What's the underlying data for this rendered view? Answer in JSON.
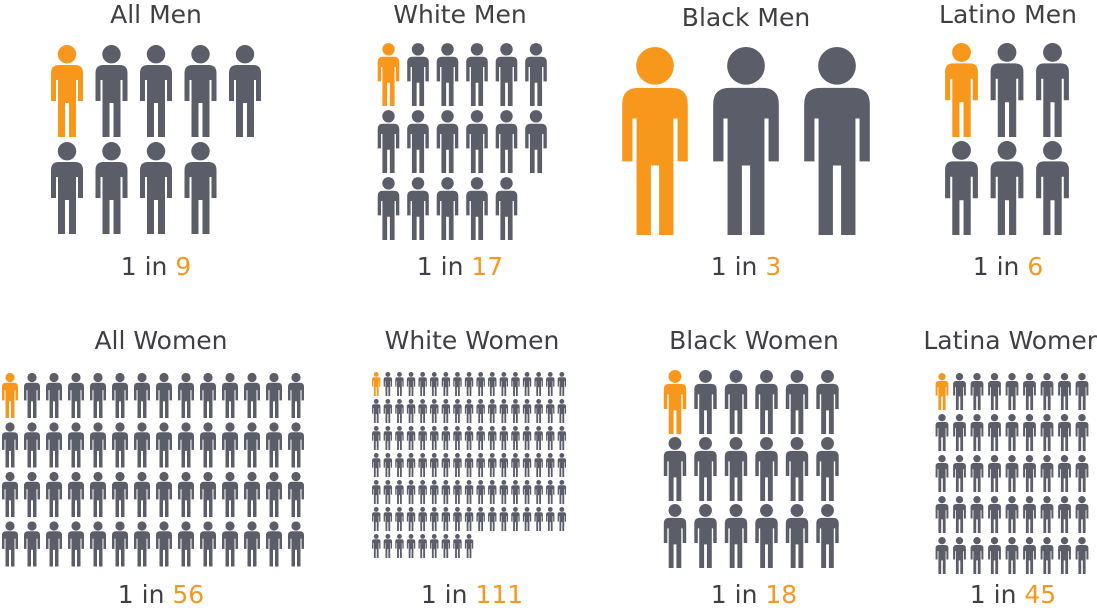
{
  "chart_data": {
    "type": "pictogram",
    "colors": {
      "highlight": "#f7981d",
      "base": "#5b5d68",
      "text": "#3f3f45"
    },
    "icon": "person-icon",
    "panels": [
      {
        "title": "All Men",
        "ratio_prefix": "1 in",
        "ratio": "9",
        "value": 9
      },
      {
        "title": "White Men",
        "ratio_prefix": "1 in",
        "ratio": "17",
        "value": 17
      },
      {
        "title": "Black Men",
        "ratio_prefix": "1 in",
        "ratio": "3",
        "value": 3
      },
      {
        "title": "Latino Men",
        "ratio_prefix": "1 in",
        "ratio": "6",
        "value": 6
      },
      {
        "title": "All Women",
        "ratio_prefix": "1 in",
        "ratio": "56",
        "value": 56
      },
      {
        "title": "White Women",
        "ratio_prefix": "1 in",
        "ratio": "111",
        "value": 111
      },
      {
        "title": "Black Women",
        "ratio_prefix": "1 in",
        "ratio": "18",
        "value": 18
      },
      {
        "title": "Latina Women",
        "ratio_prefix": "1 in",
        "ratio": "45",
        "value": 45
      }
    ]
  }
}
